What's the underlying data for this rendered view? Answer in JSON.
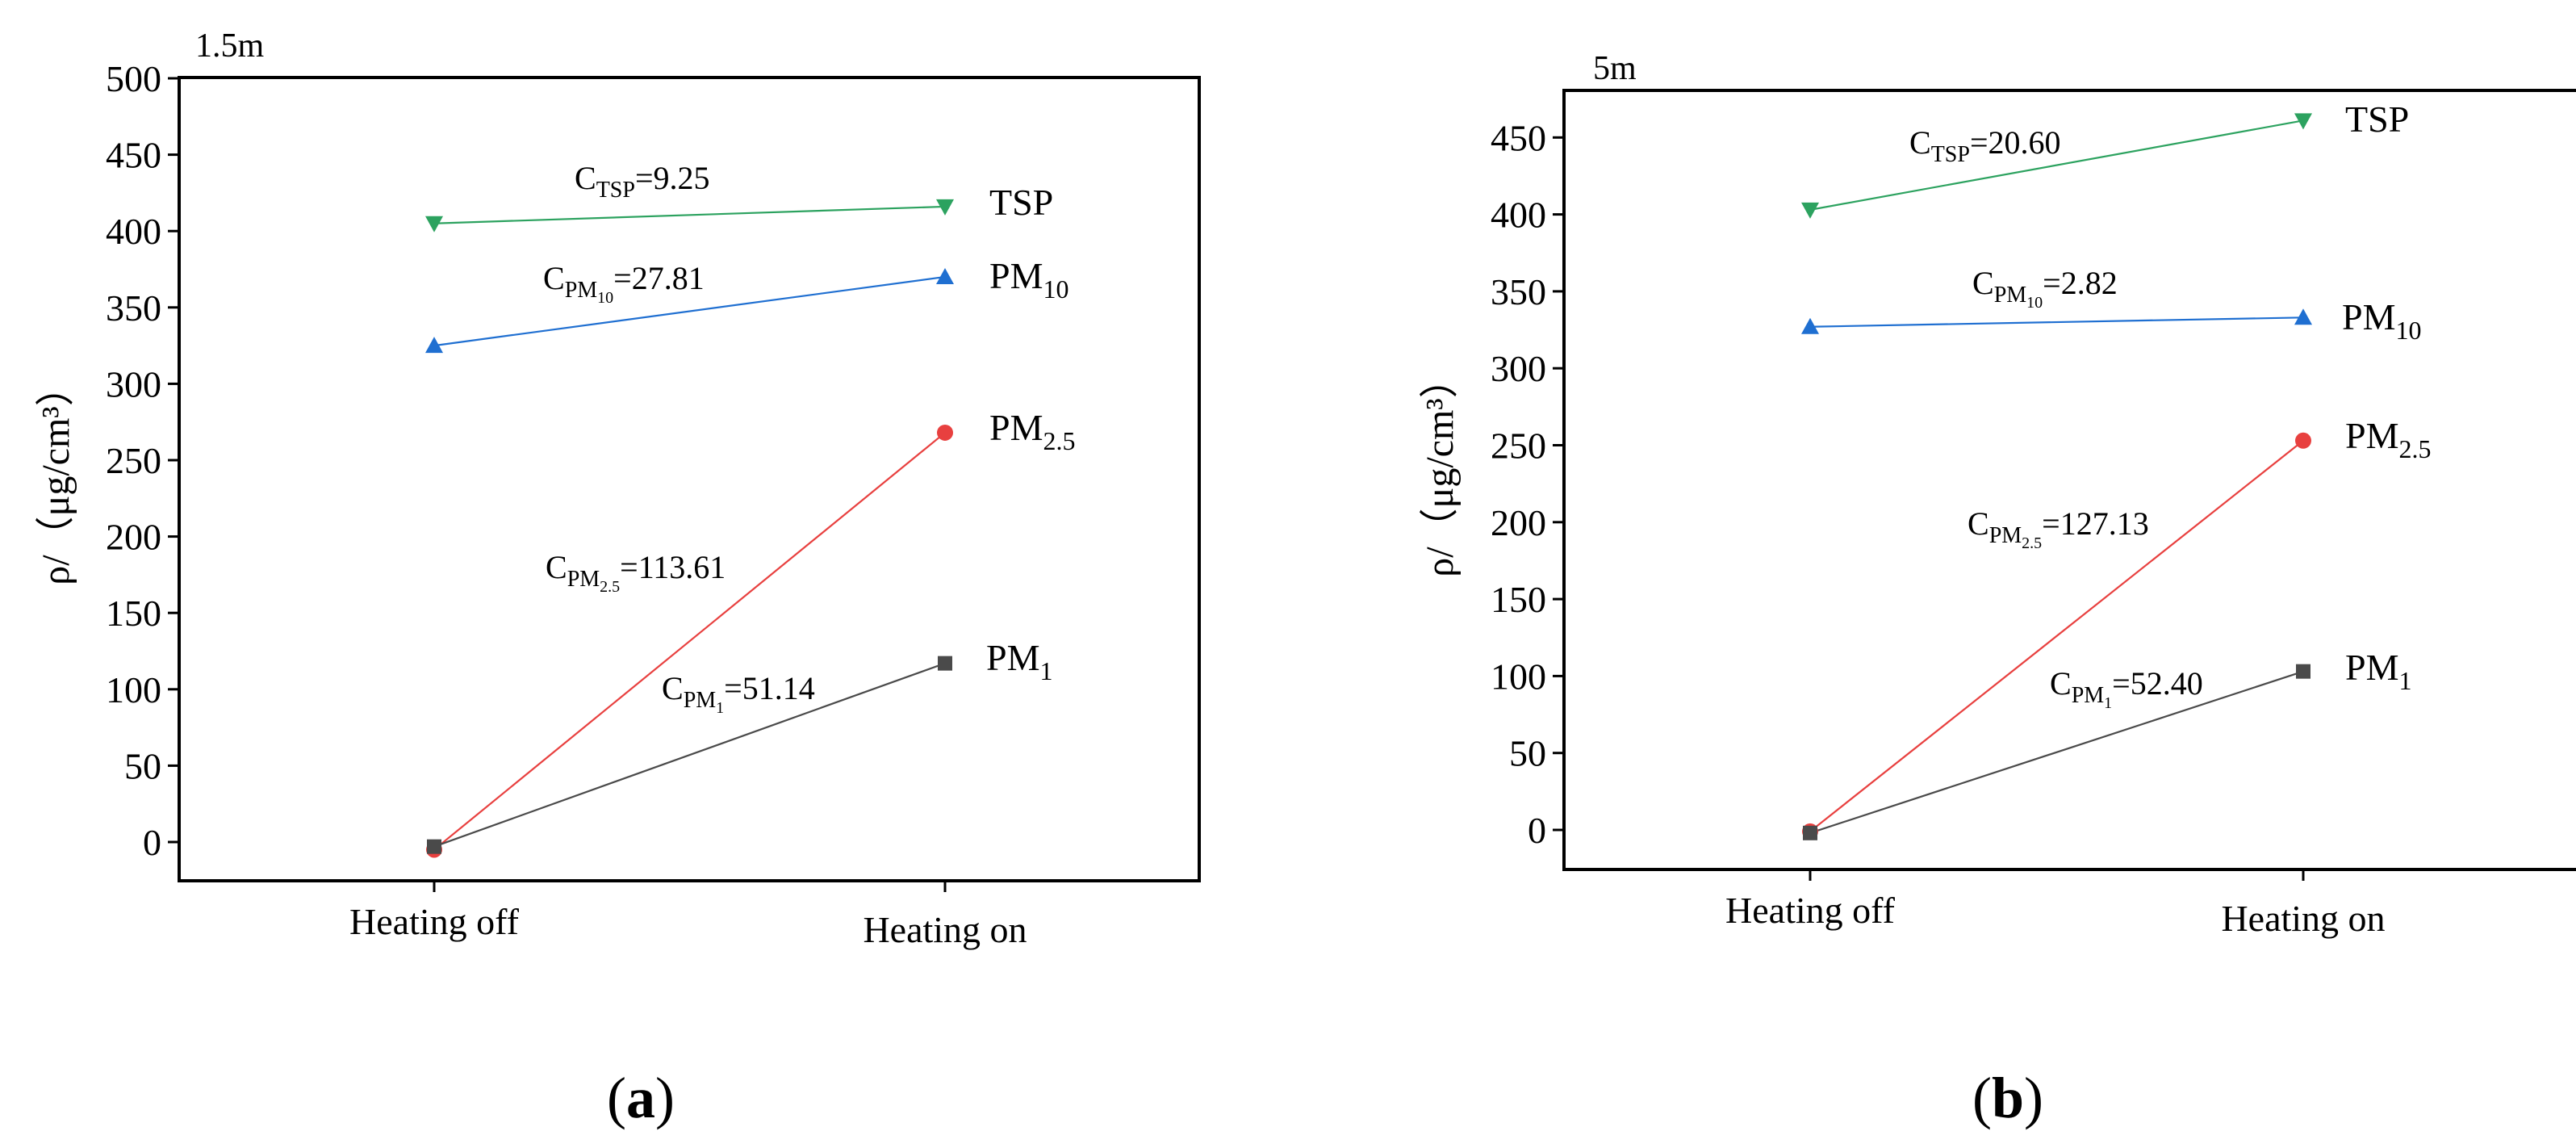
{
  "chart_data": [
    {
      "panel": "a",
      "panel_label": "a",
      "type": "line",
      "title": "1.5m",
      "xlabel": "",
      "ylabel": "ρ/（μg/cm³）",
      "categories": [
        "Heating off",
        "Heating on"
      ],
      "ylim": [
        -25,
        500
      ],
      "yticks": [
        0,
        50,
        100,
        150,
        200,
        250,
        300,
        350,
        400,
        450,
        500
      ],
      "grid": false,
      "series": [
        {
          "name": "TSP",
          "label_main": "TSP",
          "label_sub": "",
          "marker": "triangle-down",
          "color": "#2ca25f",
          "values": [
            405,
            416
          ],
          "annotation": {
            "main": "C",
            "sub": "TSP",
            "value": "=9.25"
          }
        },
        {
          "name": "PM10",
          "label_main": "PM",
          "label_sub": "10",
          "marker": "triangle-up",
          "color": "#1f6fd1",
          "values": [
            325,
            370
          ],
          "annotation": {
            "main": "C",
            "sub": "PM",
            "subsub": "10",
            "value": "=27.81"
          }
        },
        {
          "name": "PM2.5",
          "label_main": "PM",
          "label_sub": "2.5",
          "marker": "circle",
          "color": "#e8403f",
          "values": [
            -5,
            268
          ],
          "annotation": {
            "main": "C",
            "sub": "PM",
            "subsub": "2.5",
            "value": "=113.61"
          }
        },
        {
          "name": "PM1",
          "label_main": "PM",
          "label_sub": "1",
          "marker": "square",
          "color": "#4a4a4a",
          "values": [
            -3,
            117
          ],
          "annotation": {
            "main": "C",
            "sub": "PM",
            "subsub": "1",
            "value": "=51.14"
          }
        }
      ]
    },
    {
      "panel": "b",
      "panel_label": "b",
      "type": "line",
      "title": "5m",
      "xlabel": "",
      "ylabel": "ρ/（μg/cm³）",
      "categories": [
        "Heating off",
        "Heating on"
      ],
      "ylim": [
        -25,
        475
      ],
      "yticks": [
        0,
        50,
        100,
        150,
        200,
        250,
        300,
        350,
        400,
        450
      ],
      "grid": false,
      "series": [
        {
          "name": "TSP",
          "label_main": "TSP",
          "label_sub": "",
          "marker": "triangle-down",
          "color": "#2ca25f",
          "values": [
            403,
            461
          ],
          "annotation": {
            "main": "C",
            "sub": "TSP",
            "value": "=20.60"
          }
        },
        {
          "name": "PM10",
          "label_main": "PM",
          "label_sub": "10",
          "marker": "triangle-up",
          "color": "#1f6fd1",
          "values": [
            327,
            333
          ],
          "annotation": {
            "main": "C",
            "sub": "PM",
            "subsub": "10",
            "value": "=2.82"
          }
        },
        {
          "name": "PM2.5",
          "label_main": "PM",
          "label_sub": "2.5",
          "marker": "circle",
          "color": "#e8403f",
          "values": [
            -1,
            253
          ],
          "annotation": {
            "main": "C",
            "sub": "PM",
            "subsub": "2.5",
            "value": "=127.13"
          }
        },
        {
          "name": "PM1",
          "label_main": "PM",
          "label_sub": "1",
          "marker": "square",
          "color": "#4a4a4a",
          "values": [
            -2,
            103
          ],
          "annotation": {
            "main": "C",
            "sub": "PM",
            "subsub": "1",
            "value": "=52.40"
          }
        }
      ]
    }
  ]
}
